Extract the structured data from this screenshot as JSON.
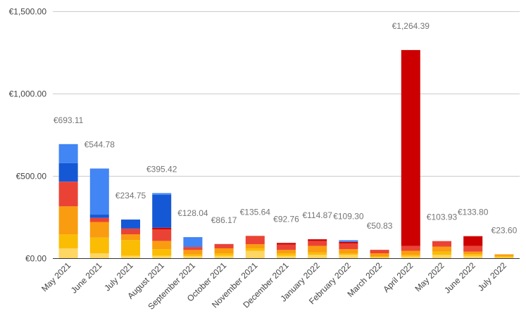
{
  "chart_data": {
    "type": "bar",
    "stacked": true,
    "categories": [
      "May 2021",
      "June 2021",
      "July 2021",
      "August 2021",
      "September 2021",
      "October 2021",
      "November 2021",
      "December 2021",
      "January 2022",
      "February 2022",
      "March 2022",
      "April 2022",
      "May 2022",
      "June 2022",
      "July 2022"
    ],
    "totals": [
      693.11,
      544.78,
      234.75,
      395.42,
      128.04,
      86.17,
      135.64,
      92.76,
      114.87,
      109.3,
      50.83,
      1264.39,
      103.93,
      133.8,
      23.6
    ],
    "total_labels": [
      "€693.11",
      "€544.78",
      "€234.75",
      "€395.42",
      "€128.04",
      "€86.17",
      "€135.64",
      "€92.76",
      "€114.87",
      "€109.30",
      "€50.83",
      "€1,264.39",
      "€103.93",
      "€133.80",
      "€23.60"
    ],
    "series": [
      {
        "color": "#fdd663",
        "values": [
          60,
          30,
          15,
          15,
          12,
          15,
          45,
          15,
          20,
          20,
          5,
          10,
          20,
          15,
          5
        ]
      },
      {
        "color": "#fbbc04",
        "values": [
          85,
          95,
          95,
          40,
          10,
          15,
          15,
          15,
          15,
          10,
          5,
          10,
          20,
          10,
          8
        ]
      },
      {
        "color": "#fa9c0f",
        "values": [
          170,
          95,
          35,
          50,
          28,
          30,
          25,
          20,
          40,
          25,
          20,
          25,
          30,
          15,
          10.6
        ]
      },
      {
        "color": "#ea4335",
        "values": [
          150,
          25,
          35,
          70,
          18,
          26,
          50.64,
          32.76,
          30,
          35,
          20.83,
          30,
          33.93,
          35,
          0
        ]
      },
      {
        "color": "#cc0000",
        "values": [
          0,
          0,
          0,
          10,
          0,
          0.17,
          0,
          10,
          9.87,
          9.3,
          0,
          1189.39,
          0,
          58.8,
          0
        ]
      },
      {
        "color": "#1558d6",
        "values": [
          113.11,
          19.78,
          54.75,
          200.42,
          0,
          0,
          0,
          0,
          0,
          0,
          0,
          0,
          0,
          0,
          0
        ]
      },
      {
        "color": "#4285f4",
        "values": [
          115,
          280,
          0,
          10,
          60.04,
          0,
          0,
          0,
          0,
          10,
          0,
          0,
          0,
          0,
          0
        ]
      }
    ],
    "y_ticks": [
      0,
      500,
      1000,
      1500
    ],
    "y_tick_labels": [
      "€0.00",
      "€500.00",
      "€1,000.00",
      "€1,500.00"
    ],
    "ylim": [
      0,
      1500
    ],
    "grid": true,
    "legend": "none"
  }
}
